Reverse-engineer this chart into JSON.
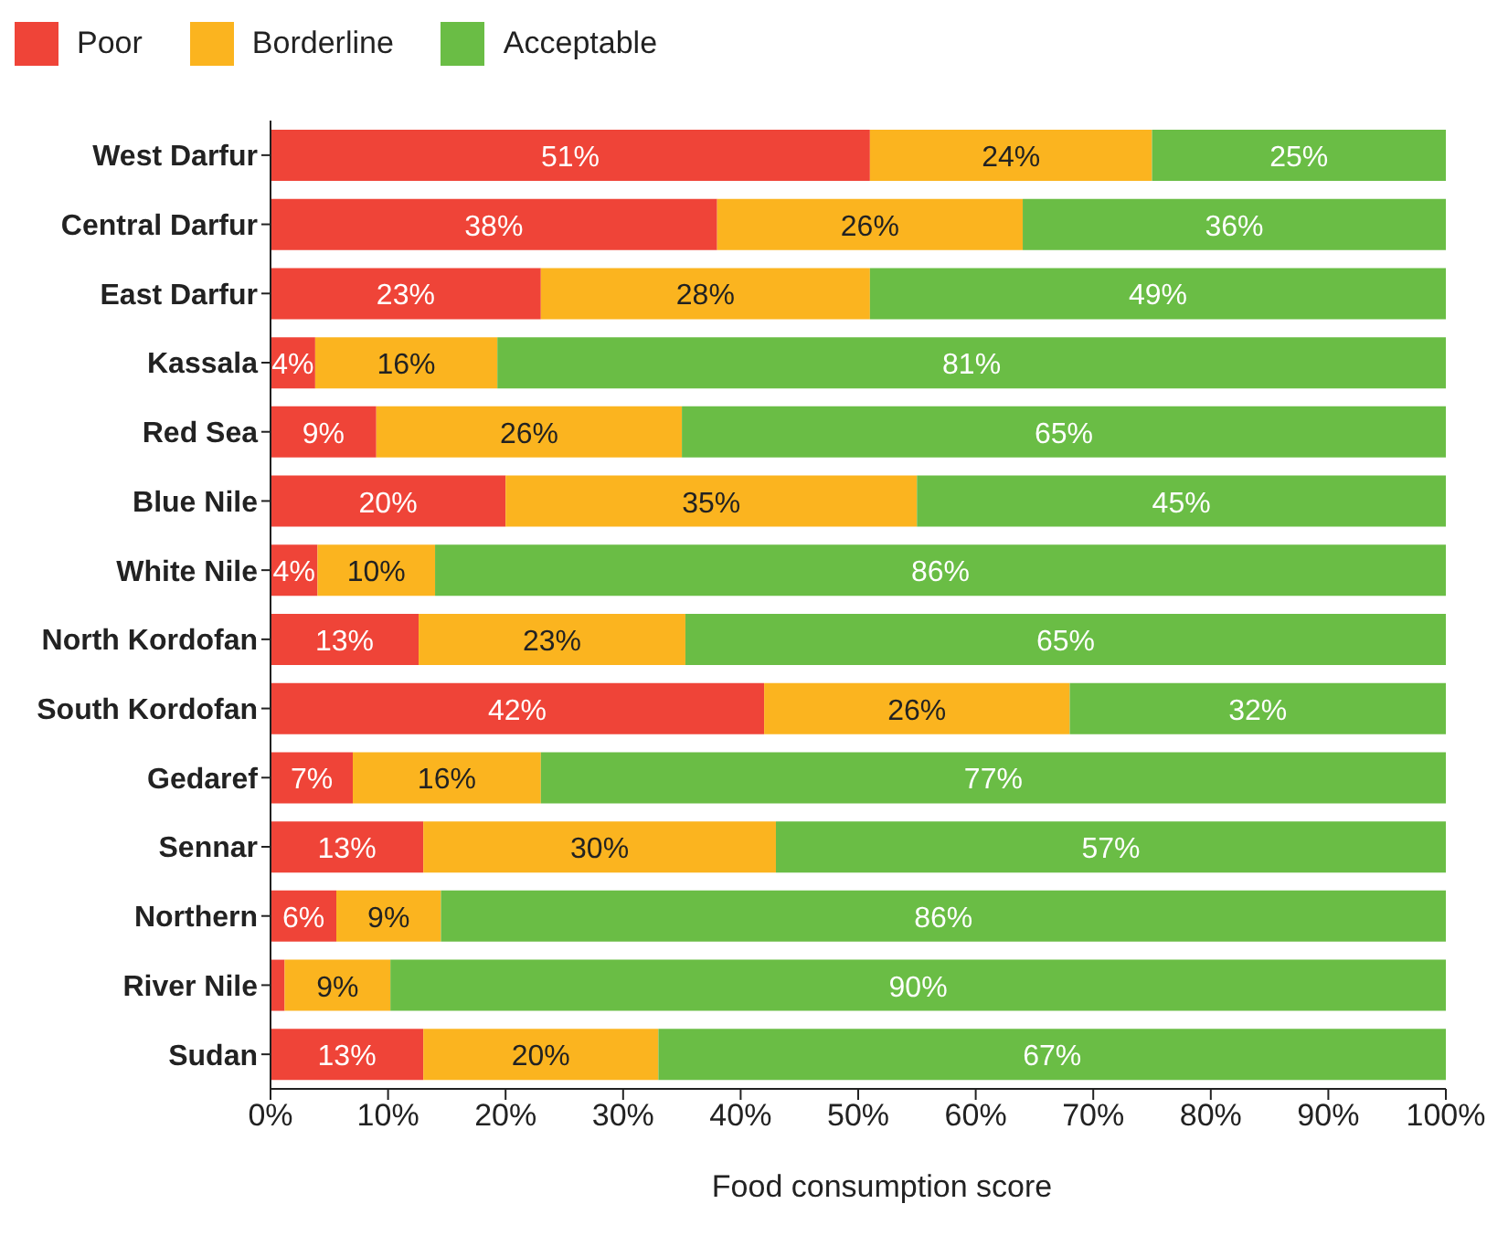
{
  "chart_data": {
    "type": "bar",
    "orientation": "horizontal",
    "stacked": true,
    "xlabel": "Food consumption score",
    "categories": [
      "West Darfur",
      "Central Darfur",
      "East Darfur",
      "Kassala",
      "Red Sea",
      "Blue Nile",
      "White Nile",
      "North Kordofan",
      "South Kordofan",
      "Gedaref",
      "Sennar",
      "Northern",
      "River Nile",
      "Sudan"
    ],
    "series": [
      {
        "name": "Poor",
        "color": "#ef4438",
        "values": [
          51,
          38,
          23,
          3.8,
          9,
          20,
          4,
          12.6,
          42,
          7,
          13,
          5.6,
          1.2,
          13
        ],
        "value_labels": [
          "51%",
          "38%",
          "23%",
          "4%",
          "9%",
          "20%",
          "4%",
          "13%",
          "42%",
          "7%",
          "13%",
          "6%",
          null,
          "13%"
        ]
      },
      {
        "name": "Borderline",
        "color": "#fbb41f",
        "values": [
          24,
          26,
          28,
          15.5,
          26,
          35,
          10,
          22.7,
          26,
          16,
          30,
          8.9,
          9,
          20
        ],
        "value_labels": [
          "24%",
          "26%",
          "28%",
          "16%",
          "26%",
          "35%",
          "10%",
          "23%",
          "26%",
          "16%",
          "30%",
          "9%",
          "9%",
          "20%"
        ]
      },
      {
        "name": "Acceptable",
        "color": "#6abd45",
        "values": [
          25,
          36,
          49,
          80.7,
          65,
          45,
          86,
          64.7,
          32,
          77,
          57,
          85.5,
          89.8,
          67
        ],
        "value_labels": [
          "25%",
          "36%",
          "49%",
          "81%",
          "65%",
          "45%",
          "86%",
          "65%",
          "32%",
          "77%",
          "57%",
          "86%",
          "90%",
          "67%"
        ]
      }
    ],
    "xlim": [
      0,
      100
    ],
    "xticks": [
      {
        "value": 0,
        "label": "0%"
      },
      {
        "value": 10,
        "label": "10%"
      },
      {
        "value": 20,
        "label": "20%"
      },
      {
        "value": 30,
        "label": "30%"
      },
      {
        "value": 40,
        "label": "40%"
      },
      {
        "value": 50,
        "label": "50%"
      },
      {
        "value": 60,
        "label": "60%"
      },
      {
        "value": 70,
        "label": "70%"
      },
      {
        "value": 80,
        "label": "80%"
      },
      {
        "value": 90,
        "label": "90%"
      },
      {
        "value": 100,
        "label": "100%"
      }
    ],
    "legend": "top left",
    "grid": false
  }
}
